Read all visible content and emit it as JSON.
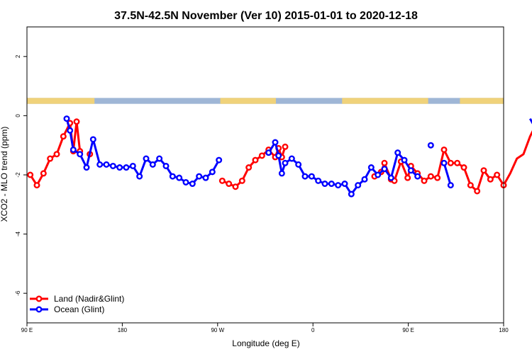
{
  "chart_data": {
    "type": "line",
    "title": "37.5N-42.5N November (Ver 10)   2015-01-01 to 2020-12-18",
    "xlabel": "Longitude (deg E)",
    "ylabel": "XCO2 - MLO trend (ppm)",
    "xlim": [
      90,
      450
    ],
    "ylim": [
      -7,
      3
    ],
    "x_ticks": [
      {
        "value": 90,
        "label": "90 E"
      },
      {
        "value": 180,
        "label": "180"
      },
      {
        "value": 270,
        "label": "90 W"
      },
      {
        "value": 360,
        "label": "0"
      },
      {
        "value": 450,
        "label": "90 E"
      },
      {
        "value": 540,
        "label": "180"
      }
    ],
    "y_ticks": [
      {
        "value": 2,
        "label": "2"
      },
      {
        "value": 0,
        "label": "0"
      },
      {
        "value": -2,
        "label": "-2"
      },
      {
        "value": -4,
        "label": "-4"
      },
      {
        "value": -6,
        "label": "-6"
      }
    ],
    "x_axis_extent": [
      90,
      540
    ],
    "land_ocean_band": {
      "y_range": [
        0.4,
        0.6
      ],
      "ocean_color": "#9fb6d6",
      "land_color": "#f0d27a",
      "land_segments": [
        [
          90,
          141
        ],
        [
          236,
          278
        ],
        [
          328,
          393
        ],
        [
          417,
          500
        ]
      ]
    },
    "series": [
      {
        "name": "Land (Nadir&Glint)",
        "color": "#ff0000",
        "points": [
          [
            92.5,
            -2.0
          ],
          [
            97.5,
            -2.35
          ],
          [
            102.5,
            -1.95
          ],
          [
            107.5,
            -1.45
          ],
          [
            112.5,
            -1.3
          ],
          [
            117.5,
            -0.7
          ],
          [
            122.5,
            -0.25
          ],
          [
            125,
            -1.2
          ],
          [
            127.5,
            -0.2
          ],
          [
            130,
            -1.2
          ],
          null,
          [
            137.5,
            -1.3
          ],
          null,
          [
            237.5,
            -2.2
          ],
          [
            242.5,
            -2.3
          ],
          [
            247.5,
            -2.4
          ],
          [
            252.5,
            -2.2
          ],
          [
            257.5,
            -1.75
          ],
          [
            262.5,
            -1.5
          ],
          [
            267.5,
            -1.35
          ],
          [
            272.5,
            -1.15
          ],
          [
            277.5,
            -1.4
          ],
          [
            280,
            -1.1
          ],
          [
            282.5,
            -1.4
          ],
          [
            285,
            -1.05
          ],
          null,
          [
            352.5,
            -2.05
          ],
          [
            357.5,
            -1.9
          ],
          [
            360,
            -1.6
          ],
          [
            365,
            -2.15
          ],
          [
            367.5,
            -2.2
          ],
          [
            372.5,
            -1.55
          ],
          [
            377.5,
            -2.1
          ],
          [
            380,
            -1.7
          ],
          [
            385,
            -1.95
          ],
          [
            390,
            -2.2
          ],
          [
            395,
            -2.05
          ],
          [
            400,
            -2.1
          ],
          [
            405,
            -1.15
          ],
          [
            410,
            -1.6
          ],
          [
            415,
            -1.6
          ],
          [
            420,
            -1.75
          ],
          [
            425,
            -2.35
          ],
          [
            430,
            -2.55
          ],
          [
            435,
            -1.85
          ],
          [
            440,
            -2.15
          ],
          [
            445,
            -2.0
          ],
          [
            450,
            -2.35
          ],
          [
            455,
            -1.95
          ],
          [
            460,
            -1.45
          ],
          [
            465,
            -1.3
          ],
          [
            470,
            -0.7
          ],
          [
            475,
            -0.25
          ],
          [
            477.5,
            -1.2
          ],
          [
            480,
            -0.2
          ],
          [
            482.5,
            -1.2
          ],
          null,
          [
            490,
            -1.3
          ]
        ]
      },
      {
        "name": "Ocean (Glint)",
        "color": "#0000ff",
        "points": [
          [
            120,
            -0.1
          ],
          [
            122.5,
            -0.5
          ],
          [
            125,
            -1.15
          ],
          [
            130,
            -1.3
          ],
          [
            135,
            -1.75
          ],
          [
            140,
            -0.8
          ],
          [
            145,
            -1.65
          ],
          [
            150,
            -1.65
          ],
          [
            155,
            -1.7
          ],
          [
            160,
            -1.75
          ],
          [
            165,
            -1.75
          ],
          [
            170,
            -1.7
          ],
          [
            175,
            -2.05
          ],
          [
            180,
            -1.45
          ],
          [
            185,
            -1.65
          ],
          [
            190,
            -1.45
          ],
          [
            195,
            -1.7
          ],
          [
            200,
            -2.05
          ],
          [
            205,
            -2.1
          ],
          [
            210,
            -2.25
          ],
          [
            215,
            -2.3
          ],
          [
            220,
            -2.05
          ],
          [
            225,
            -2.1
          ],
          [
            230,
            -1.9
          ],
          [
            235,
            -1.5
          ],
          null,
          [
            272.5,
            -1.25
          ],
          [
            277.5,
            -0.9
          ],
          [
            280,
            -1.35
          ],
          [
            282.5,
            -1.95
          ],
          [
            285,
            -1.6
          ],
          [
            290,
            -1.45
          ],
          [
            295,
            -1.65
          ],
          [
            300,
            -2.05
          ],
          [
            305,
            -2.05
          ],
          [
            310,
            -2.2
          ],
          [
            315,
            -2.3
          ],
          [
            320,
            -2.3
          ],
          [
            325,
            -2.35
          ],
          [
            330,
            -2.3
          ],
          [
            335,
            -2.65
          ],
          [
            340,
            -2.35
          ],
          [
            345,
            -2.15
          ],
          [
            350,
            -1.75
          ],
          [
            355,
            -2.0
          ],
          [
            360,
            -1.8
          ],
          [
            365,
            -2.1
          ],
          [
            370,
            -1.25
          ],
          [
            375,
            -1.5
          ],
          [
            380,
            -1.85
          ],
          [
            385,
            -2.05
          ],
          null,
          [
            395,
            -1.0
          ],
          null,
          [
            405,
            -1.6
          ],
          [
            410,
            -2.35
          ],
          null,
          [
            470,
            -0.1
          ],
          [
            475,
            -0.5
          ],
          [
            480,
            -1.15
          ],
          [
            485,
            -1.3
          ],
          [
            490,
            -1.75
          ],
          [
            495,
            -0.8
          ],
          [
            500,
            -1.65
          ],
          [
            505,
            -1.65
          ],
          [
            510,
            -1.7
          ],
          [
            515,
            -1.75
          ],
          [
            520,
            -1.75
          ],
          [
            525,
            -1.7
          ],
          [
            530,
            -2.05
          ]
        ]
      }
    ],
    "legend": {
      "position": "bottom-left",
      "entries": [
        "Land (Nadir&Glint)",
        "Ocean (Glint)"
      ]
    },
    "grid": false
  }
}
